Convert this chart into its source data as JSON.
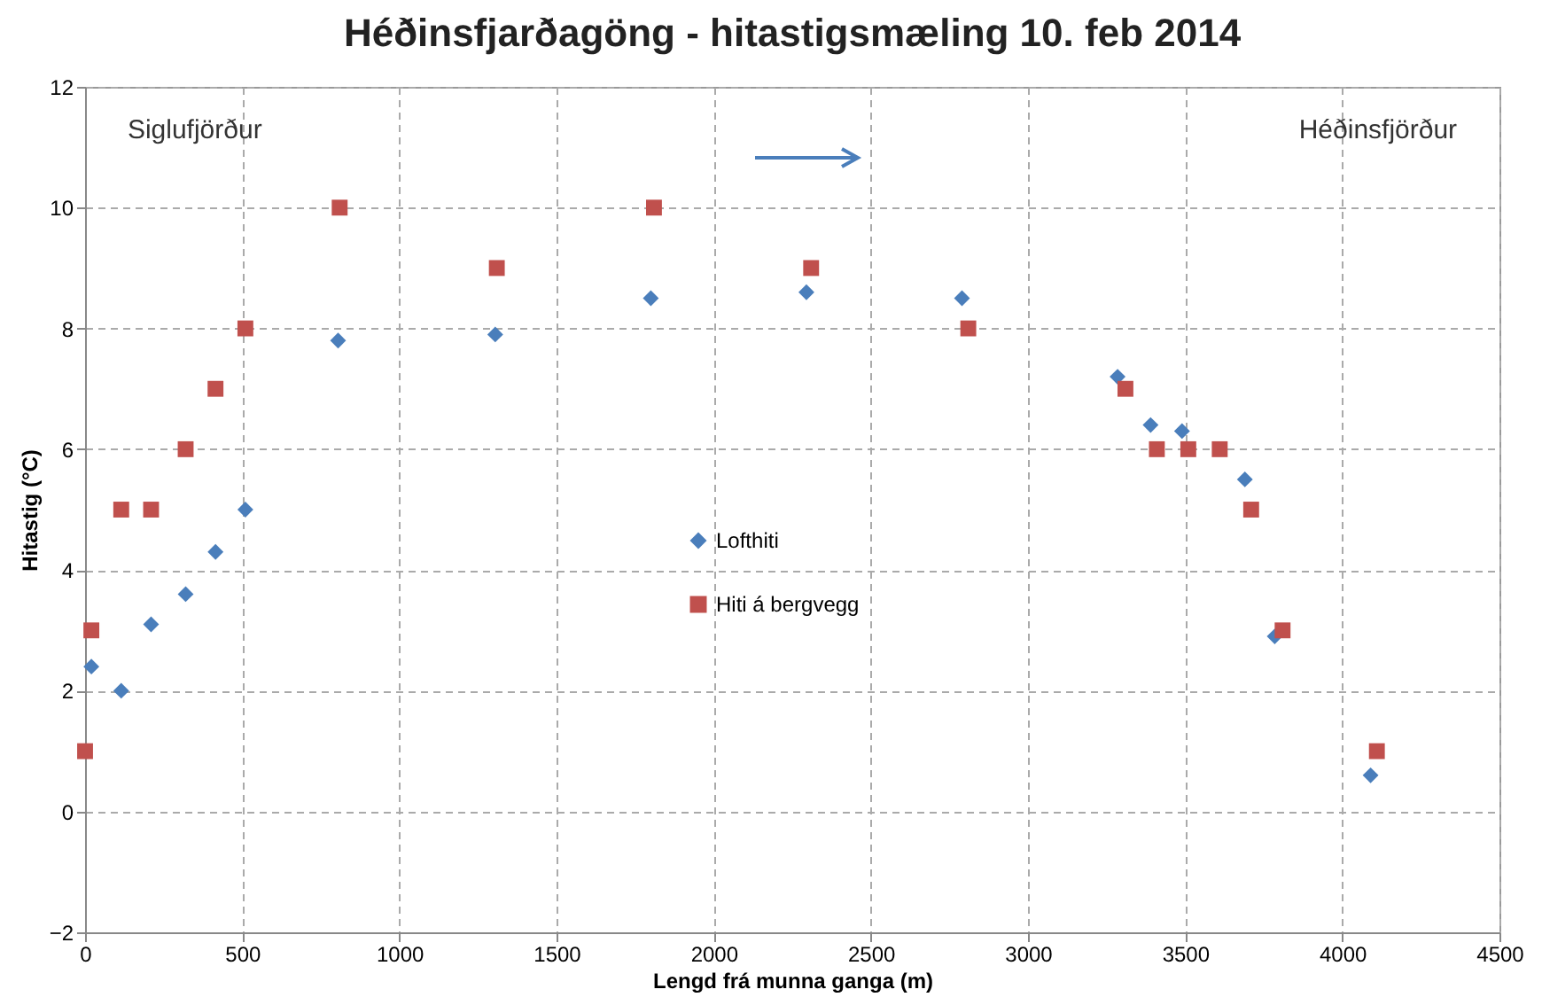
{
  "chart_data": {
    "type": "scatter",
    "title": "Héðinsfjarðagöng - hitastigsmæling  10. feb 2014",
    "xlabel": "Lengd frá munna ganga  (m)",
    "ylabel": "Hitastig (°C)",
    "xlim": [
      0,
      4500
    ],
    "xticks": [
      0,
      500,
      1000,
      1500,
      2000,
      2500,
      3000,
      3500,
      4000,
      4500
    ],
    "ylim": [
      -2,
      12
    ],
    "yticks": [
      -2,
      0,
      2,
      4,
      6,
      8,
      10,
      12
    ],
    "grid": true,
    "legend": "center",
    "annotations": [
      "Siglufjörður",
      "Héðinsfjörður"
    ],
    "series": [
      {
        "name": "Lofthiti",
        "color": "#4a7ebb",
        "marker": "diamond",
        "x": [
          20,
          115,
          210,
          320,
          415,
          510,
          805,
          1305,
          1800,
          2295,
          2790,
          3285,
          3390,
          3490,
          3690,
          3785,
          4090
        ],
        "values": [
          2.4,
          2.0,
          3.1,
          3.6,
          4.3,
          5.0,
          7.8,
          7.9,
          8.5,
          8.6,
          8.5,
          7.2,
          6.4,
          6.3,
          5.5,
          2.9,
          0.6
        ]
      },
      {
        "name": "Hiti á bergvegg",
        "color": "#c0504d",
        "marker": "square",
        "x": [
          0,
          20,
          115,
          210,
          320,
          415,
          510,
          810,
          1310,
          1810,
          2310,
          2810,
          3310,
          3410,
          3510,
          3610,
          3710,
          3810,
          4110
        ],
        "values": [
          1,
          3,
          5,
          5,
          6,
          7,
          8,
          10,
          9,
          10,
          9,
          8,
          7,
          6,
          6,
          6,
          5,
          3,
          1
        ]
      }
    ]
  }
}
